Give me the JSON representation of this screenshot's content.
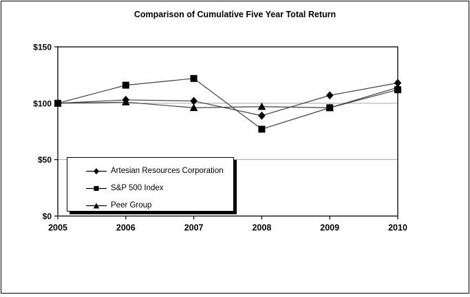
{
  "figure": {
    "background": "#ffffff",
    "border_color": "#000000"
  },
  "chart_data": {
    "type": "line",
    "title": "Comparison of Cumulative Five Year Total Return",
    "categories": [
      "2005",
      "2006",
      "2007",
      "2008",
      "2009",
      "2010"
    ],
    "series": [
      {
        "name": "Artesian Resources Corporation",
        "marker": "diamond",
        "color": "#000000",
        "values": [
          100,
          103,
          102,
          89,
          107,
          118
        ]
      },
      {
        "name": "S&P 500 Index",
        "marker": "square",
        "color": "#000000",
        "values": [
          100,
          116,
          122,
          77,
          96,
          112
        ]
      },
      {
        "name": "Peer Group",
        "marker": "triangle",
        "color": "#000000",
        "values": [
          100,
          101,
          96,
          97,
          96,
          114
        ]
      }
    ],
    "xlabel": "",
    "ylabel": "",
    "ylim": [
      0,
      150
    ],
    "y_ticks": [
      {
        "value": 150,
        "label": "$150"
      },
      {
        "value": 100,
        "label": "$100"
      },
      {
        "value": 50,
        "label": "$50"
      },
      {
        "value": 0,
        "label": "$0"
      }
    ],
    "gridlines": {
      "values": [
        50,
        100
      ],
      "color": "#a6a6a6",
      "visible": true
    },
    "line_color": "#404040",
    "frame_color": "#000000",
    "legend_position": "inside-bottom-left",
    "draw_order": [
      2,
      0,
      1
    ]
  }
}
